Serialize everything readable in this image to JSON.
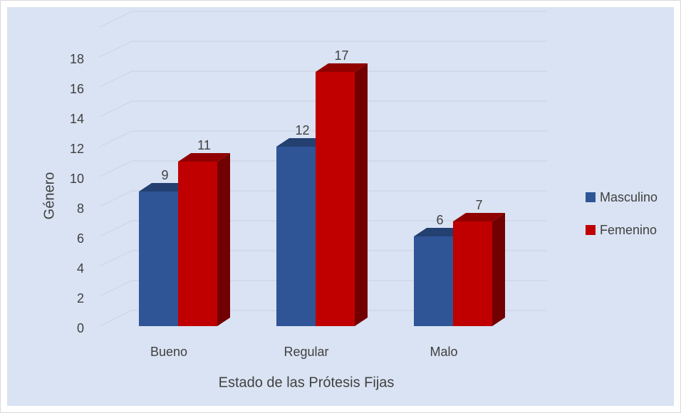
{
  "chart_data": {
    "type": "bar3d",
    "x_label": "Estado de las Prótesis Fijas",
    "y_label": "Género",
    "categories": [
      "Bueno",
      "Regular",
      "Malo"
    ],
    "series": [
      {
        "name": "Masculino",
        "color": "#2f5597",
        "values": [
          9,
          12,
          6
        ]
      },
      {
        "name": "Femenino",
        "color": "#c00000",
        "values": [
          11,
          17,
          7
        ]
      }
    ],
    "ylim": [
      0,
      20
    ],
    "yticks": [
      0,
      2,
      4,
      6,
      8,
      10,
      12,
      14,
      16,
      18
    ],
    "grid": true,
    "legend": "right"
  }
}
